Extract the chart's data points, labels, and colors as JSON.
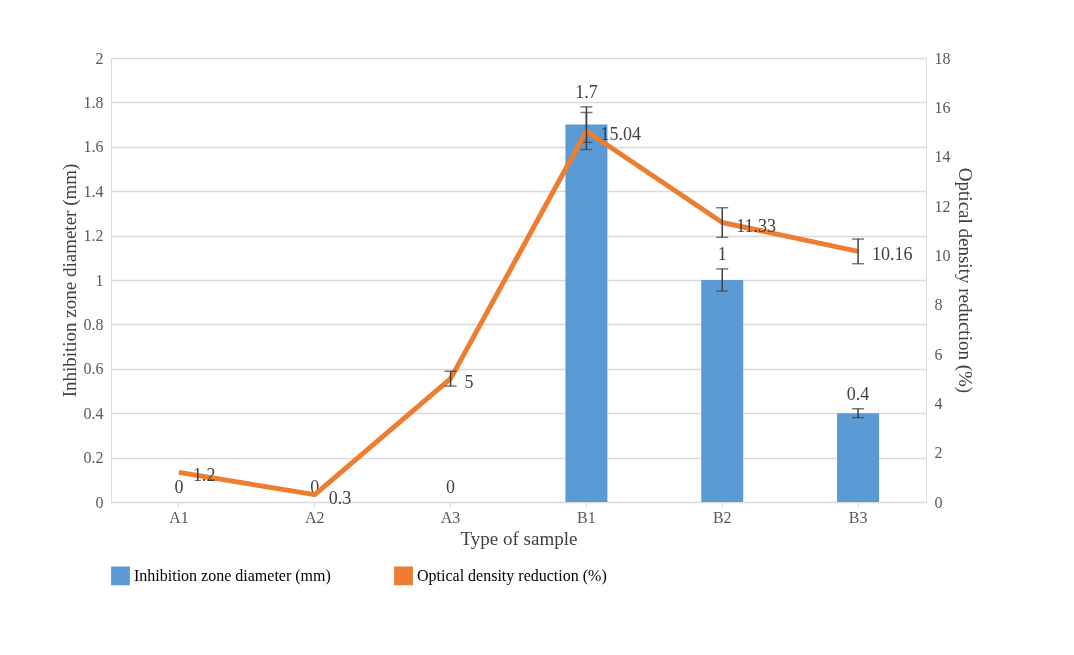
{
  "chart_data": {
    "type": "bar",
    "xlabel": "Type of sample",
    "ylabel": "Inhibition zone diameter (mm)",
    "y2label": "Optical density reduction (%)",
    "categories": [
      "A1",
      "A2",
      "A3",
      "B1",
      "B2",
      "B3"
    ],
    "series": [
      {
        "name": "Inhibition zone diameter (mm)",
        "color": "#5b9bd5",
        "values": [
          0,
          0,
          0,
          1.7,
          1,
          0.4
        ],
        "errors": [
          null,
          null,
          null,
          0.08,
          0.05,
          0.02
        ]
      },
      {
        "name": "Optical density reduction (%)",
        "type": "line",
        "axis": "y2",
        "color": "#ed7d31",
        "values": [
          1.2,
          0.3,
          5,
          15.04,
          11.33,
          10.16
        ],
        "errors": [
          null,
          null,
          0.3,
          0.75,
          0.6,
          0.5
        ]
      }
    ],
    "ylim": [
      0,
      2
    ],
    "yticks": [
      0,
      0.2,
      0.4,
      0.6,
      0.8,
      1,
      1.2,
      1.4,
      1.6,
      1.8,
      2
    ],
    "y2lim": [
      0,
      18
    ],
    "y2ticks": [
      0,
      2,
      4,
      6,
      8,
      10,
      12,
      14,
      16,
      18
    ],
    "grid": "y",
    "legend": "bottom",
    "data_labels": true,
    "marker": "none"
  }
}
